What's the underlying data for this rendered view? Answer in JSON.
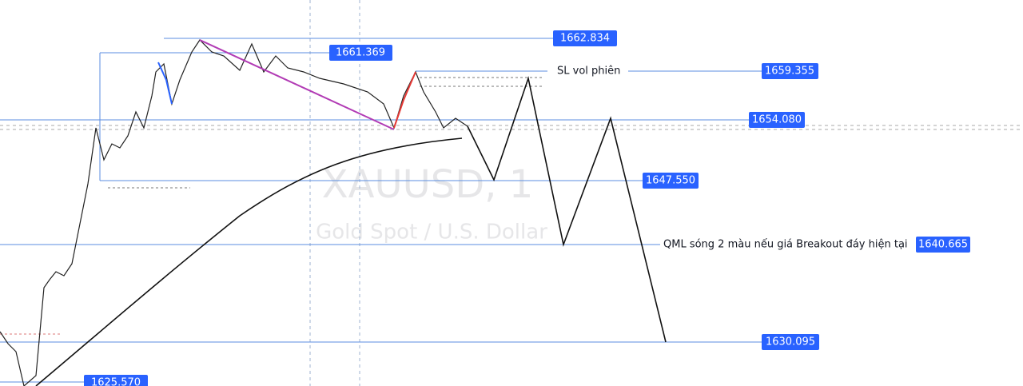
{
  "watermark": {
    "symbol": "XAUUSD, 1",
    "description": "Gold Spot / U.S. Dollar"
  },
  "price_labels": [
    "1662.834",
    "1661.369",
    "1659.355",
    "1654.080",
    "1647.550",
    "1640.665",
    "1630.095",
    "1625.570"
  ],
  "notes": {
    "stop_loss": "SL vol phiên",
    "qml": "QML sóng 2 màu nếu giá Breakout đáy hiện tại"
  }
}
